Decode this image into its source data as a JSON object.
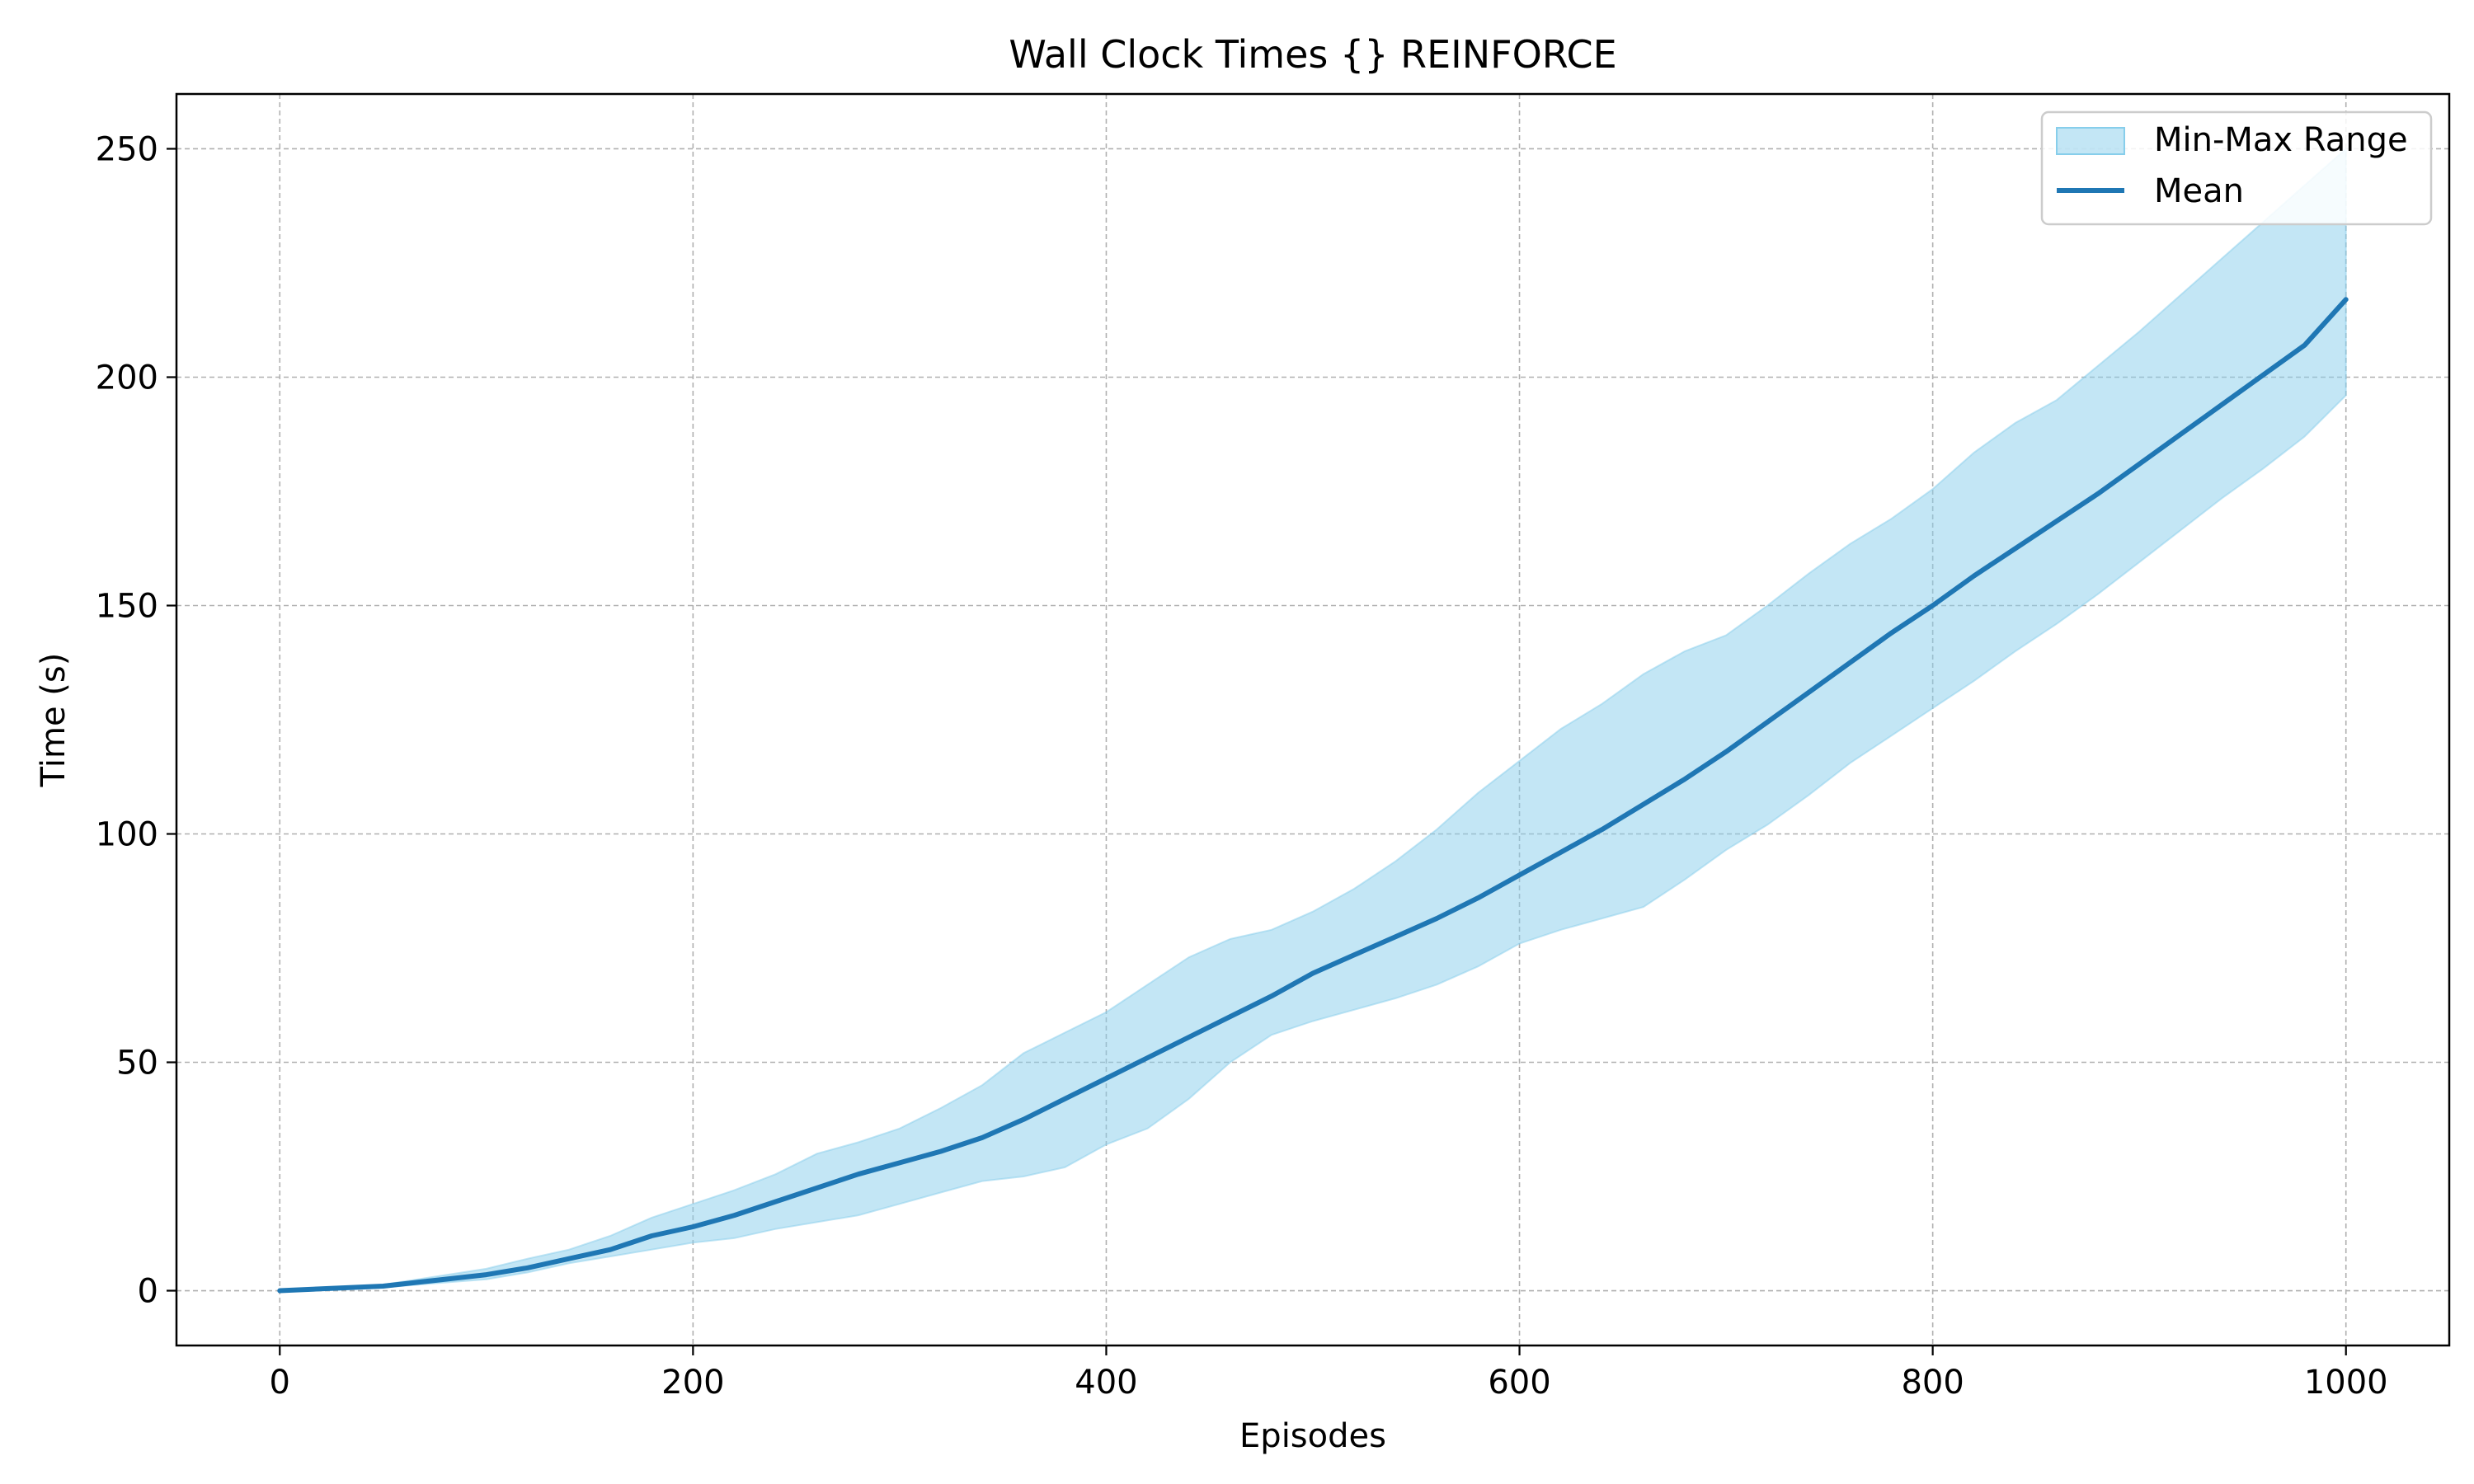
{
  "chart_data": {
    "type": "area",
    "title": "Wall Clock Times {} REINFORCE",
    "xlabel": "Episodes",
    "ylabel": "Time (s)",
    "xlim": [
      -50,
      1050
    ],
    "ylim": [
      -12,
      262
    ],
    "x_ticks": [
      0,
      200,
      400,
      600,
      800,
      1000
    ],
    "y_ticks": [
      0,
      50,
      100,
      150,
      200,
      250
    ],
    "grid": true,
    "legend_position": "top-right",
    "legend": [
      {
        "label": "Min-Max Range",
        "kind": "patch"
      },
      {
        "label": "Mean",
        "kind": "line"
      }
    ],
    "colors": {
      "range_fill": "#87ceeb",
      "range_edge": "#87ceeb",
      "mean_line": "#1f77b4",
      "grid": "#b0b0b0"
    },
    "x": [
      0,
      50,
      100,
      120,
      140,
      160,
      180,
      200,
      220,
      240,
      260,
      280,
      300,
      320,
      340,
      360,
      380,
      400,
      420,
      440,
      460,
      480,
      500,
      520,
      540,
      560,
      580,
      600,
      620,
      640,
      660,
      680,
      700,
      720,
      740,
      760,
      780,
      800,
      820,
      840,
      860,
      880,
      900,
      920,
      940,
      960,
      980,
      1000
    ],
    "series": [
      {
        "name": "Mean",
        "values": [
          0,
          1,
          3.5,
          5,
          7,
          9,
          12,
          14,
          16.5,
          19.5,
          22.5,
          25.5,
          28,
          30.5,
          33.5,
          37.5,
          42,
          46.5,
          51,
          55.5,
          60,
          64.5,
          69.5,
          73.5,
          77.5,
          81.5,
          86,
          91,
          96,
          101,
          106.5,
          112,
          118,
          124.5,
          131,
          137.5,
          144,
          150,
          156.5,
          162.5,
          168.5,
          174.5,
          181,
          187.5,
          194,
          200.5,
          207,
          217
        ]
      },
      {
        "name": "Min-Max Range",
        "upper": [
          0,
          1.3,
          4.8,
          7,
          9,
          12,
          16,
          19,
          22,
          25.5,
          30,
          32.5,
          35.5,
          40,
          45,
          52,
          56.5,
          61,
          67,
          73,
          77,
          79,
          83,
          88,
          94,
          101,
          109,
          116,
          123,
          128.5,
          135,
          140,
          143.5,
          150,
          157,
          163.5,
          169,
          175.5,
          183.5,
          190,
          195,
          202.5,
          210,
          218,
          226,
          234,
          242,
          250
        ],
        "lower": [
          0,
          0.7,
          2.5,
          4,
          6,
          7.5,
          9,
          10.5,
          11.5,
          13.5,
          15,
          16.5,
          19,
          21.5,
          24,
          25,
          27,
          32,
          35.5,
          42,
          50,
          56,
          59,
          61.5,
          64,
          67,
          71,
          76,
          79,
          81.5,
          84,
          90,
          96.5,
          102,
          108.5,
          115.5,
          121.5,
          127.5,
          133.5,
          140,
          146,
          152.5,
          159.5,
          166.5,
          173.5,
          180,
          187,
          196
        ]
      }
    ]
  }
}
